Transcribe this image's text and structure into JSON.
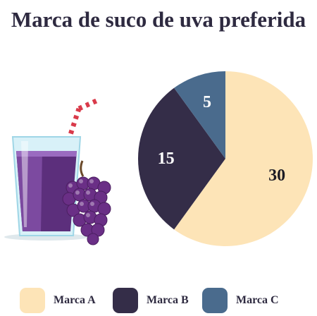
{
  "chart_data": {
    "type": "pie",
    "title": "Marca de suco de uva preferida",
    "slices": [
      {
        "label": "Marca A",
        "value": 30,
        "color": "#fde4b7",
        "text_color": "#1c1b24"
      },
      {
        "label": "Marca B",
        "value": 15,
        "color": "#342d48",
        "text_color": "#ffffff"
      },
      {
        "label": "Marca C",
        "value": 5,
        "color": "#4a6b8d",
        "text_color": "#ffffff"
      }
    ],
    "start_angle_deg": 0,
    "direction": "clockwise",
    "show_values": true,
    "legend_position": "bottom"
  },
  "illustration": {
    "name": "grape-juice-glass-icon"
  }
}
